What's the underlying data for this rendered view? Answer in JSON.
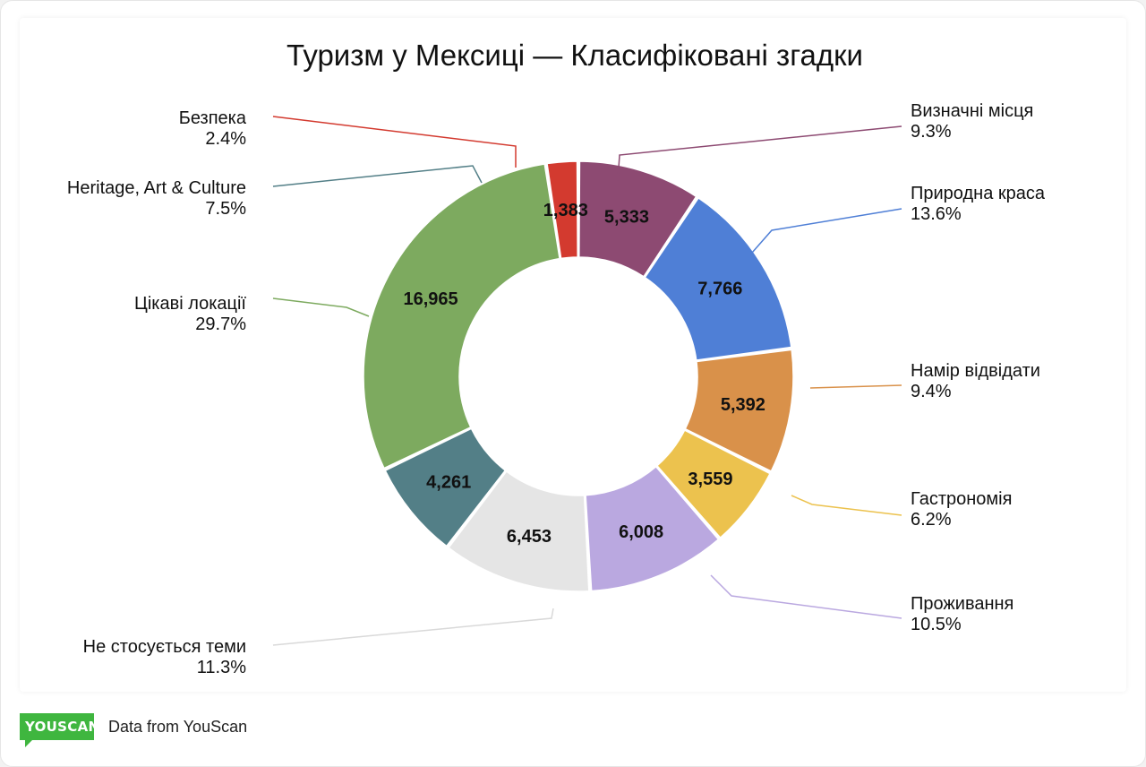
{
  "chart_data": {
    "type": "pie",
    "title": "Туризм у Мексиці — Класифіковані згадки",
    "slices": [
      {
        "label": "Визначні місця",
        "value": 5333,
        "value_label": "5,333",
        "percent": "9.3%",
        "color": "#8d4a72"
      },
      {
        "label": "Природна краса",
        "value": 7766,
        "value_label": "7,766",
        "percent": "13.6%",
        "color": "#4f7fd6"
      },
      {
        "label": "Намір відвідати",
        "value": 5392,
        "value_label": "5,392",
        "percent": "9.4%",
        "color": "#d9914a"
      },
      {
        "label": "Гастрономія",
        "value": 3559,
        "value_label": "3,559",
        "percent": "6.2%",
        "color": "#ecc24e"
      },
      {
        "label": "Проживання",
        "value": 6008,
        "value_label": "6,008",
        "percent": "10.5%",
        "color": "#baa8e0"
      },
      {
        "label": "Не стосується теми",
        "value": 6453,
        "value_label": "6,453",
        "percent": "11.3%",
        "color": "#e5e5e5"
      },
      {
        "label": "Heritage, Art & Culture",
        "value": 4261,
        "value_label": "4,261",
        "percent": "7.5%",
        "color": "#537f87"
      },
      {
        "label": "Цікаві локації",
        "value": 16965,
        "value_label": "16,965",
        "percent": "29.7%",
        "color": "#7daa5f"
      },
      {
        "label": "Безпека",
        "value": 1383,
        "value_label": "1,383",
        "percent": "2.4%",
        "color": "#d33a2f"
      }
    ]
  },
  "footer": {
    "logo_text": "YOUSCAN",
    "source_text": "Data from YouScan"
  }
}
